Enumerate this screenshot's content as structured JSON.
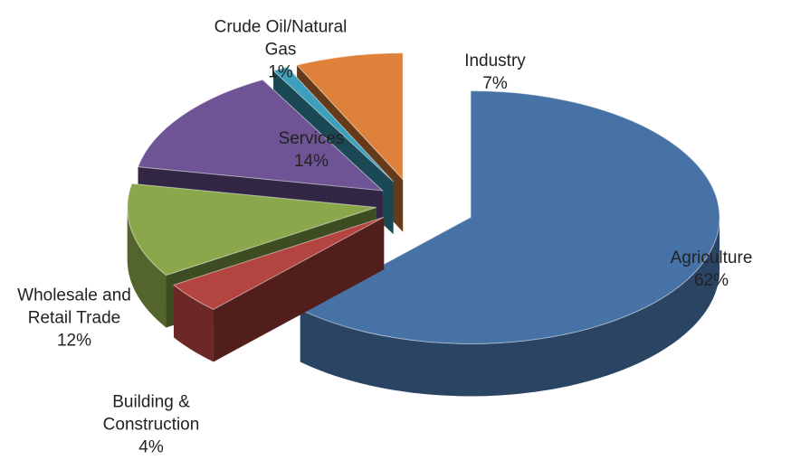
{
  "chart_data": {
    "type": "pie",
    "categories": [
      "Agriculture",
      "Building & Construction",
      "Wholesale and Retail Trade",
      "Services",
      "Crude Oil/Natural Gas",
      "Industry"
    ],
    "values": [
      62,
      4,
      12,
      14,
      1,
      7
    ],
    "value_labels": [
      "62%",
      "4%",
      "12%",
      "14%",
      "1%",
      "7%"
    ],
    "colors": [
      "#4672a6",
      "#b3443f",
      "#8aa84b",
      "#6e5494",
      "#3d9fbc",
      "#de823b"
    ]
  }
}
